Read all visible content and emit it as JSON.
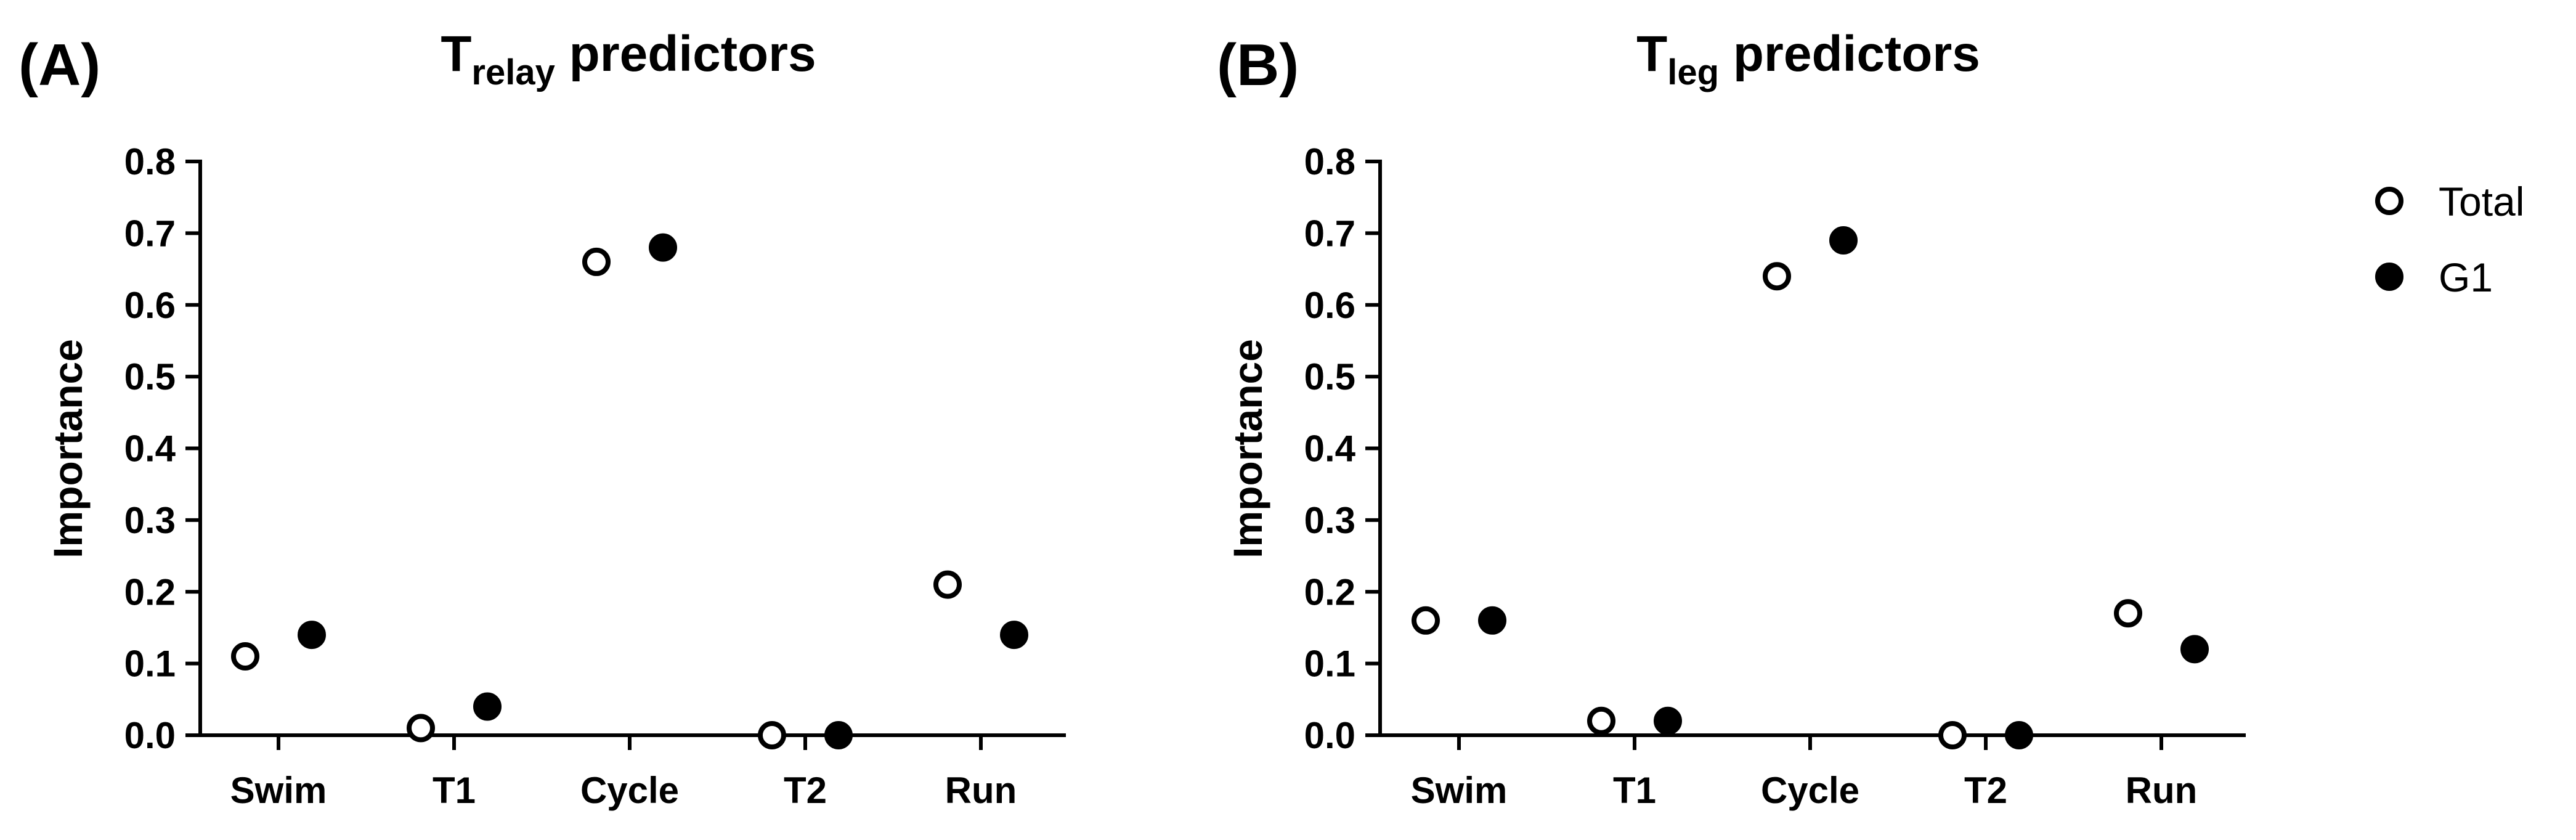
{
  "chart_data": [
    {
      "type": "scatter",
      "panel_label": "(A)",
      "title": {
        "main": "T",
        "sub": "relay",
        "rest": " predictors"
      },
      "xlabel": "",
      "ylabel": "Importance",
      "categories": [
        "Swim",
        "T1",
        "Cycle",
        "T2",
        "Run"
      ],
      "yticks": [
        "0.0",
        "0.1",
        "0.2",
        "0.3",
        "0.4",
        "0.5",
        "0.6",
        "0.7",
        "0.8"
      ],
      "ylim": [
        0,
        0.8
      ],
      "grid": false,
      "series": [
        {
          "name": "Total",
          "marker": "open-circle",
          "values": [
            0.11,
            0.01,
            0.66,
            0.0,
            0.21
          ]
        },
        {
          "name": "G1",
          "marker": "filled-circle",
          "values": [
            0.14,
            0.04,
            0.68,
            0.0,
            0.14
          ]
        }
      ]
    },
    {
      "type": "scatter",
      "panel_label": "(B)",
      "title": {
        "main": "T",
        "sub": "leg",
        "rest": " predictors"
      },
      "xlabel": "",
      "ylabel": "Importance",
      "categories": [
        "Swim",
        "T1",
        "Cycle",
        "T2",
        "Run"
      ],
      "yticks": [
        "0.0",
        "0.1",
        "0.2",
        "0.3",
        "0.4",
        "0.5",
        "0.6",
        "0.7",
        "0.8"
      ],
      "ylim": [
        0,
        0.8
      ],
      "grid": false,
      "series": [
        {
          "name": "Total",
          "marker": "open-circle",
          "values": [
            0.16,
            0.02,
            0.64,
            0.0,
            0.17
          ]
        },
        {
          "name": "G1",
          "marker": "filled-circle",
          "values": [
            0.16,
            0.02,
            0.69,
            0.0,
            0.12
          ]
        }
      ]
    }
  ],
  "legend": {
    "placement": "top-right",
    "items": [
      {
        "name": "Total",
        "marker": "open-circle"
      },
      {
        "name": "G1",
        "marker": "filled-circle"
      }
    ]
  },
  "colors": {
    "marker": "#000000",
    "background": "#ffffff"
  }
}
